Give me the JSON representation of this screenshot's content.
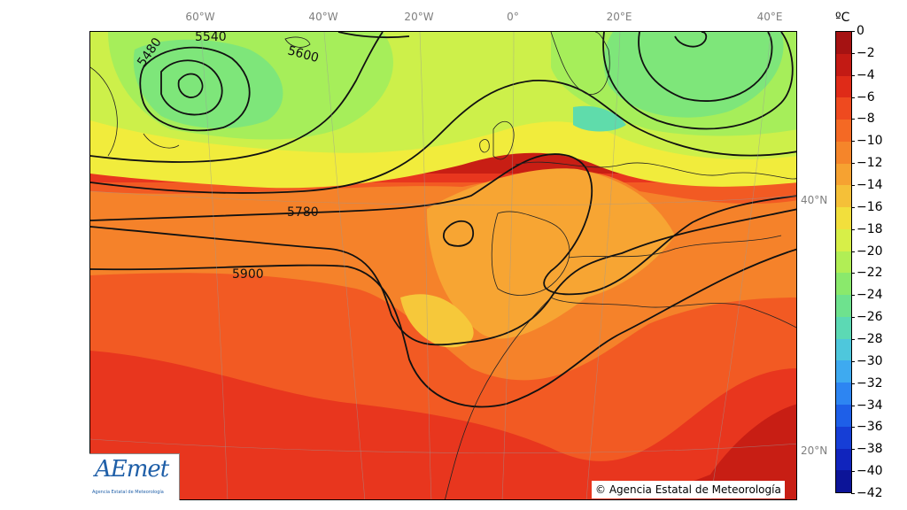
{
  "map": {
    "lon_labels": [
      "60°W",
      "40°W",
      "20°W",
      "0°",
      "20°E",
      "40°E"
    ],
    "lat_labels": [
      "40°N",
      "20°N"
    ],
    "contour_labels": [
      "5480",
      "5540",
      "5600",
      "5780",
      "5900"
    ],
    "colors": {
      "deep_red": "#c81e14",
      "red": "#e8361e",
      "orange_red": "#f25a23",
      "orange": "#f5822a",
      "light_orange": "#f7a533",
      "yellow_orange": "#f6c83a",
      "yellow": "#f1ec3c",
      "yellow_green": "#cdf04a",
      "light_green": "#a6ee5a",
      "green": "#7ee67a",
      "cyan_green": "#5fdcab"
    }
  },
  "logo": {
    "name": "AEmet",
    "subtitle": "Agencia Estatal de Meteorología"
  },
  "copyright": "© Agencia Estatal de Meteorología",
  "colorbar": {
    "unit": "ºC",
    "ticks": [
      "0",
      "−2",
      "−4",
      "−6",
      "−8",
      "−10",
      "−12",
      "−14",
      "−16",
      "−18",
      "−20",
      "−22",
      "−24",
      "−26",
      "−28",
      "−30",
      "−32",
      "−34",
      "−36",
      "−38",
      "−40",
      "−42"
    ],
    "colors": [
      "#a51212",
      "#c31a14",
      "#df2b18",
      "#ee4a1f",
      "#f46924",
      "#f5852a",
      "#f6a231",
      "#f5c038",
      "#f2df3c",
      "#d7ef48",
      "#b1ee55",
      "#8ae96c",
      "#6ee28e",
      "#5cd9b4",
      "#4ec7dc",
      "#3eaaf0",
      "#2d85f2",
      "#1e5fe8",
      "#163ed6",
      "#1024bd",
      "#0c1498"
    ]
  }
}
